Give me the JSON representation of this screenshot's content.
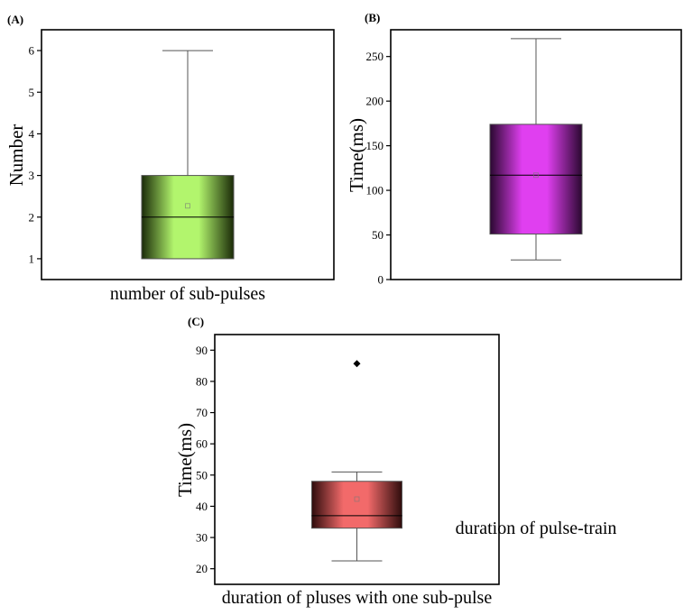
{
  "figure": {
    "background": "#ffffff",
    "axis_color": "#000000",
    "whisker_color": "#555555",
    "median_color": "#000000"
  },
  "chart_data": [
    {
      "type": "box",
      "panel_label": "(A)",
      "xlabel": "number of sub-pulses",
      "ylabel": "Number",
      "ylim": [
        0.5,
        6.5
      ],
      "yticks": [
        1,
        2,
        3,
        4,
        5,
        6
      ],
      "grid": false,
      "fill_color": "#b2f56d",
      "fill_dark": "#1a2a08",
      "box": {
        "min": 1,
        "q1": 1,
        "median": 2,
        "mean": 2.27,
        "q3": 3,
        "max": 6
      },
      "outliers": []
    },
    {
      "type": "box",
      "panel_label": "(B)",
      "xlabel": "duration of pulse-train",
      "ylabel": "Time(ms)",
      "ylim": [
        0,
        280
      ],
      "yticks": [
        0,
        50,
        100,
        150,
        200,
        250
      ],
      "grid": false,
      "fill_color": "#e03ff0",
      "fill_dark": "#2a0830",
      "box": {
        "min": 22,
        "q1": 51,
        "median": 117,
        "mean": 117,
        "q3": 174,
        "max": 270
      },
      "outliers": []
    },
    {
      "type": "box",
      "panel_label": "(C)",
      "xlabel": "duration of pluses with one sub-pulse",
      "ylabel": "Time(ms)",
      "ylim": [
        15,
        95
      ],
      "yticks": [
        20,
        30,
        40,
        50,
        60,
        70,
        80,
        90
      ],
      "grid": false,
      "fill_color": "#f26a6a",
      "fill_dark": "#2e0c0c",
      "box": {
        "min": 22.5,
        "q1": 33,
        "median": 37,
        "mean": 42.3,
        "q3": 48,
        "max": 51
      },
      "outliers": [
        85.7
      ]
    }
  ]
}
